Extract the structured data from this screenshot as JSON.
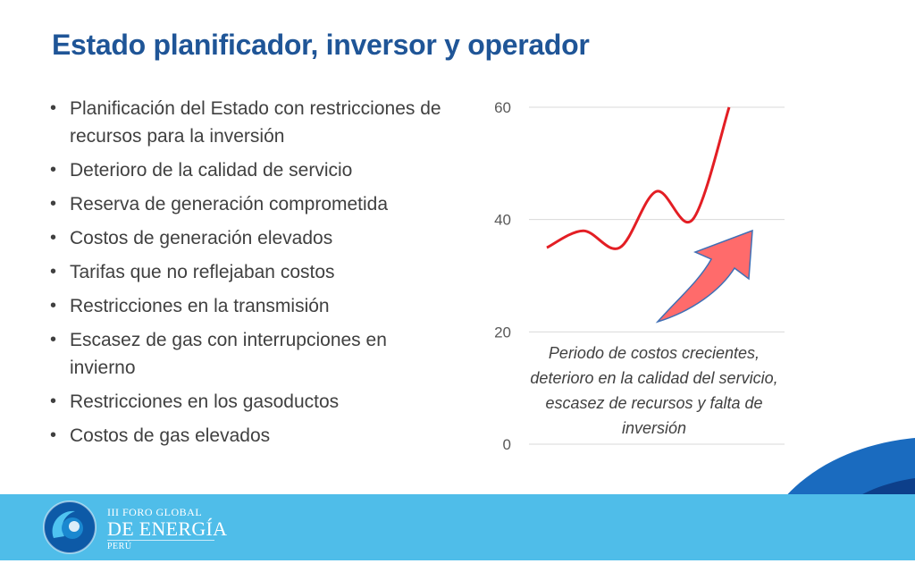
{
  "slide": {
    "title": "Estado planificador, inversor y operador",
    "bullets": [
      "Planificación del Estado con restricciones de recursos para la inversión",
      "Deterioro de la calidad de servicio",
      "Reserva de generación comprometida",
      "Costos de generación elevados",
      "Tarifas que no reflejaban costos",
      "Restricciones en la transmisión",
      "Escasez de gas con interrupciones en invierno",
      "Restricciones en los gasoductos",
      "Costos de gas elevados"
    ]
  },
  "chart_data": {
    "type": "line",
    "title": "",
    "xlabel": "",
    "ylabel": "",
    "ylim": [
      0,
      60
    ],
    "yticks": [
      "0",
      "20",
      "40",
      "60"
    ],
    "grid": true,
    "series": [
      {
        "color": "#e31e24",
        "points": [
          {
            "x": 0,
            "y": 35
          },
          {
            "x": 1,
            "y": 38
          },
          {
            "x": 2,
            "y": 35
          },
          {
            "x": 3,
            "y": 45
          },
          {
            "x": 4,
            "y": 40
          },
          {
            "x": 5,
            "y": 60
          }
        ]
      }
    ],
    "annotation": "Periodo de costos crecientes, deterioro en la calidad del servicio, escasez de recursos y falta de inversión",
    "arrow_color": "#ff6b6b"
  },
  "footer": {
    "line1": "III FORO GLOBAL",
    "line2": "DE ENERGÍA",
    "line3": "PERÚ",
    "bar_color": "#4fbde9"
  }
}
